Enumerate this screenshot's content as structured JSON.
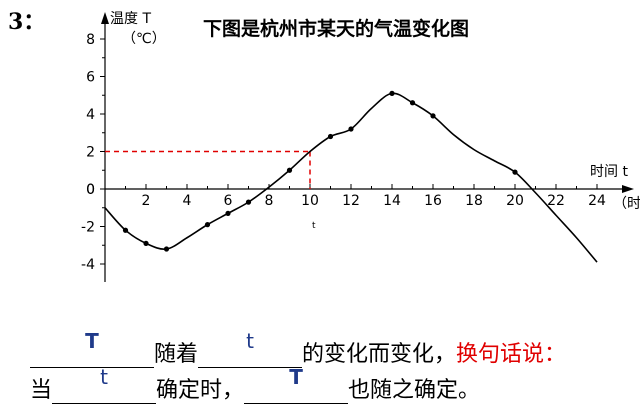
{
  "question_number": "3：",
  "chart_data": {
    "type": "line",
    "title": "下图是杭州市某天的气温变化图",
    "ylabel": "温度 T",
    "yunit": "（℃）",
    "xlabel": "时间 t",
    "xunit": "（时）",
    "xlim": [
      0,
      24
    ],
    "ylim": [
      -4,
      8
    ],
    "xticks": [
      "2",
      "4",
      "6",
      "8",
      "10",
      "12",
      "14",
      "16",
      "18",
      "20",
      "22",
      "24"
    ],
    "yticks": [
      "8",
      "6",
      "4",
      "2",
      "0",
      "-2",
      "-4"
    ],
    "series": [
      {
        "x": [
          0,
          1,
          2,
          3,
          4,
          5,
          6,
          7,
          8,
          9,
          10,
          11,
          12,
          13,
          14,
          15,
          16,
          17,
          18,
          19,
          20,
          21,
          22,
          23,
          24
        ],
        "y": [
          -1,
          -2.2,
          -2.9,
          -3.2,
          -2.6,
          -1.9,
          -1.3,
          -0.7,
          0.1,
          1,
          2,
          2.8,
          3.2,
          4.3,
          5.1,
          4.6,
          3.9,
          2.9,
          2.1,
          1.5,
          0.9,
          -0.2,
          -1.4,
          -2.6,
          -3.9
        ]
      }
    ],
    "points": [
      [
        1,
        -2.2
      ],
      [
        2,
        -2.9
      ],
      [
        3,
        -3.2
      ],
      [
        5,
        -1.9
      ],
      [
        6,
        -1.3
      ],
      [
        7,
        -0.7
      ],
      [
        9,
        1
      ],
      [
        11,
        2.8
      ],
      [
        12,
        3.2
      ],
      [
        14,
        5.1
      ],
      [
        15,
        4.6
      ],
      [
        16,
        3.9
      ],
      [
        20,
        0.9
      ]
    ],
    "annotation": {
      "x": 10,
      "y": 2,
      "label": "t"
    }
  },
  "sentence1": {
    "answer_a": "T",
    "text_a": "随着",
    "answer_b": "t",
    "text_b": "的变化而变化，",
    "text_red": "换句话说："
  },
  "sentence2": {
    "text_a": "当",
    "answer_a": "t",
    "text_b": "确定时，",
    "answer_b": "T",
    "text_c": "也随之确定。"
  },
  "colors": {
    "dashed": "#e00000",
    "answer": "#1f3a8a",
    "emphasis": "#e00000"
  }
}
